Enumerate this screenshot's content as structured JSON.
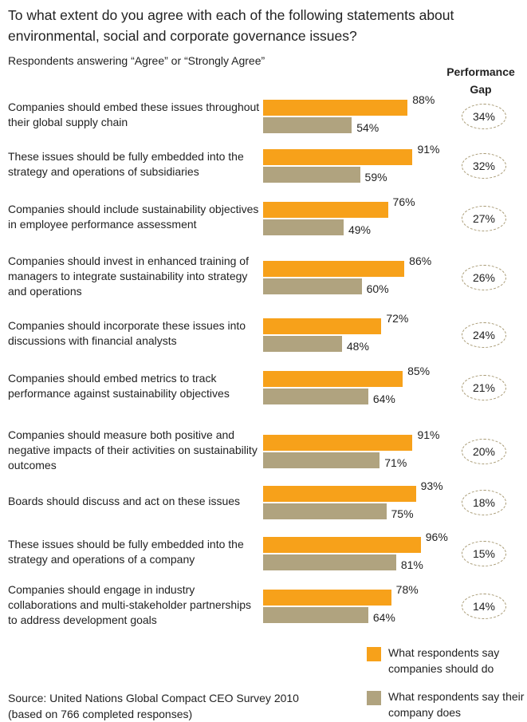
{
  "chart_data": {
    "type": "bar",
    "orientation": "horizontal",
    "title": "To what extent do you agree with each of the following statements about environmental, social and corporate governance issues?",
    "subtitle": "Respondents answering “Agree” or “Strongly Agree”",
    "categories": [
      "Companies should embed these issues throughout their global supply chain",
      "These issues should be fully embedded into the strategy and operations of subsidiaries",
      "Companies should include sustainability objectives in employee performance assessment",
      "Companies should invest in enhanced training of managers to integrate sustainability into strategy and operations",
      "Companies should incorporate these issues into discussions with financial analysts",
      "Companies should embed metrics to track performance against sustainability objectives",
      "Companies should measure both positive and negative impacts of their activities on sustainability outcomes",
      "Boards should discuss and act on these issues",
      "These issues should be fully embedded into the strategy and operations of a company",
      "Companies should engage in industry collaborations and multi-stakeholder partnerships to address development goals"
    ],
    "series": [
      {
        "name": "What respondents say companies should do",
        "color": "#f7a11a",
        "values": [
          88,
          91,
          76,
          86,
          72,
          85,
          91,
          93,
          96,
          78
        ],
        "value_labels": [
          "88%",
          "91%",
          "76%",
          "86%",
          "72%",
          "85%",
          "91%",
          "93%",
          "96%",
          "78%"
        ]
      },
      {
        "name": "What respondents say their company does",
        "color": "#b0a37f",
        "values": [
          54,
          59,
          49,
          60,
          48,
          64,
          71,
          75,
          81,
          64
        ],
        "value_labels": [
          "54%",
          "59%",
          "49%",
          "60%",
          "48%",
          "64%",
          "71%",
          "75%",
          "81%",
          "64%"
        ]
      }
    ],
    "gap": {
      "title": "Performance Gap",
      "values": [
        34,
        32,
        27,
        26,
        24,
        21,
        20,
        18,
        15,
        14
      ],
      "value_labels": [
        "34%",
        "32%",
        "27%",
        "26%",
        "24%",
        "21%",
        "20%",
        "18%",
        "15%",
        "14%"
      ]
    },
    "source": [
      "Source: United Nations Global Compact CEO Survey 2010",
      "(based on 766 completed responses)"
    ]
  }
}
